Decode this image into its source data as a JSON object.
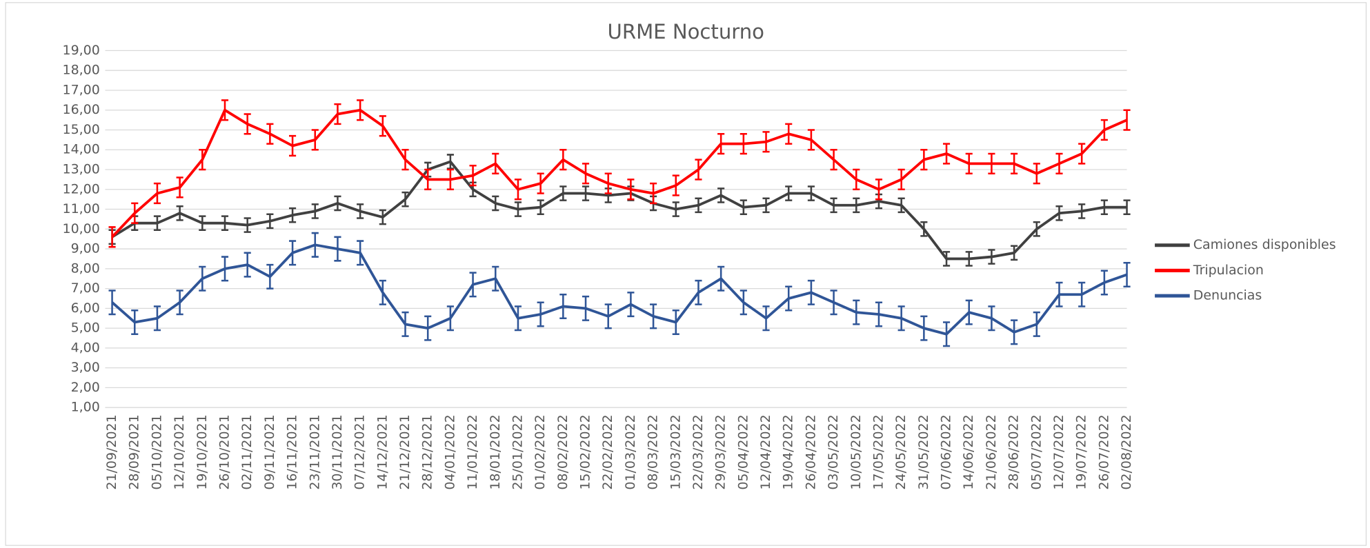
{
  "chart_data": {
    "type": "line",
    "title": "URME Nocturno",
    "categories": [
      "21/09/2021",
      "28/09/2021",
      "05/10/2021",
      "12/10/2021",
      "19/10/2021",
      "26/10/2021",
      "02/11/2021",
      "09/11/2021",
      "16/11/2021",
      "23/11/2021",
      "30/11/2021",
      "07/12/2021",
      "14/12/2021",
      "21/12/2021",
      "28/12/2021",
      "04/01/2022",
      "11/01/2022",
      "18/01/2022",
      "25/01/2022",
      "01/02/2022",
      "08/02/2022",
      "15/02/2022",
      "22/02/2022",
      "01/03/2022",
      "08/03/2022",
      "15/03/2022",
      "22/03/2022",
      "29/03/2022",
      "05/04/2022",
      "12/04/2022",
      "19/04/2022",
      "26/04/2022",
      "03/05/2022",
      "10/05/2022",
      "17/05/2022",
      "24/05/2022",
      "31/05/2022",
      "07/06/2022",
      "14/06/2022",
      "21/06/2022",
      "28/06/2022",
      "05/07/2022",
      "12/07/2022",
      "19/07/2022",
      "26/07/2022",
      "02/08/2022"
    ],
    "series": [
      {
        "name": "Camiones disponibles",
        "color": "#404040",
        "error": 0.35,
        "values": [
          9.6,
          10.3,
          10.3,
          10.8,
          10.3,
          10.3,
          10.2,
          10.4,
          10.7,
          10.9,
          11.3,
          10.9,
          10.6,
          11.5,
          13.0,
          13.4,
          12.0,
          11.3,
          11.0,
          11.1,
          11.8,
          11.8,
          11.7,
          11.8,
          11.3,
          11.0,
          11.2,
          11.7,
          11.1,
          11.2,
          11.8,
          11.8,
          11.2,
          11.2,
          11.4,
          11.2,
          10.0,
          8.5,
          8.5,
          8.6,
          8.8,
          10.0,
          10.8,
          10.9,
          11.1,
          11.1
        ]
      },
      {
        "name": "Tripulacion",
        "color": "#ff0000",
        "error": 0.5,
        "values": [
          9.6,
          10.8,
          11.8,
          12.1,
          13.5,
          16.0,
          15.3,
          14.8,
          14.2,
          14.5,
          15.8,
          16.0,
          15.2,
          13.5,
          12.5,
          12.5,
          12.7,
          13.3,
          12.0,
          12.3,
          13.5,
          12.8,
          12.3,
          12.0,
          11.8,
          12.2,
          13.0,
          14.3,
          14.3,
          14.4,
          14.8,
          14.5,
          13.5,
          12.5,
          12.0,
          12.5,
          13.5,
          13.8,
          13.3,
          13.3,
          13.3,
          12.8,
          13.3,
          13.8,
          15.0,
          15.5
        ]
      },
      {
        "name": "Denuncias",
        "color": "#2f5597",
        "error": 0.6,
        "values": [
          6.3,
          5.3,
          5.5,
          6.3,
          7.5,
          8.0,
          8.2,
          7.6,
          8.8,
          9.2,
          9.0,
          8.8,
          6.8,
          5.2,
          5.0,
          5.5,
          7.2,
          7.5,
          5.5,
          5.7,
          6.1,
          6.0,
          5.6,
          6.2,
          5.6,
          5.3,
          6.8,
          7.5,
          6.3,
          5.5,
          6.5,
          6.8,
          6.3,
          5.8,
          5.7,
          5.5,
          5.0,
          4.7,
          5.8,
          5.5,
          4.8,
          5.2,
          6.7,
          6.7,
          7.3,
          7.7
        ]
      }
    ],
    "ylim": [
      1,
      19
    ],
    "yticks": [
      {
        "value": 1,
        "label": "1,00"
      },
      {
        "value": 2,
        "label": "2,00"
      },
      {
        "value": 3,
        "label": "3,00"
      },
      {
        "value": 4,
        "label": "4,00"
      },
      {
        "value": 5,
        "label": "5,00"
      },
      {
        "value": 6,
        "label": "6,00"
      },
      {
        "value": 7,
        "label": "7,00"
      },
      {
        "value": 8,
        "label": "8,00"
      },
      {
        "value": 9,
        "label": "9,00"
      },
      {
        "value": 10,
        "label": "10,00"
      },
      {
        "value": 11,
        "label": "11,00"
      },
      {
        "value": 12,
        "label": "12,00"
      },
      {
        "value": 13,
        "label": "13,00"
      },
      {
        "value": 14,
        "label": "14,00"
      },
      {
        "value": 15,
        "label": "15,00"
      },
      {
        "value": 16,
        "label": "16,00"
      },
      {
        "value": 17,
        "label": "17,00"
      },
      {
        "value": 18,
        "label": "18,00"
      },
      {
        "value": 19,
        "label": "19,00"
      }
    ],
    "grid": true,
    "legend": "right"
  }
}
